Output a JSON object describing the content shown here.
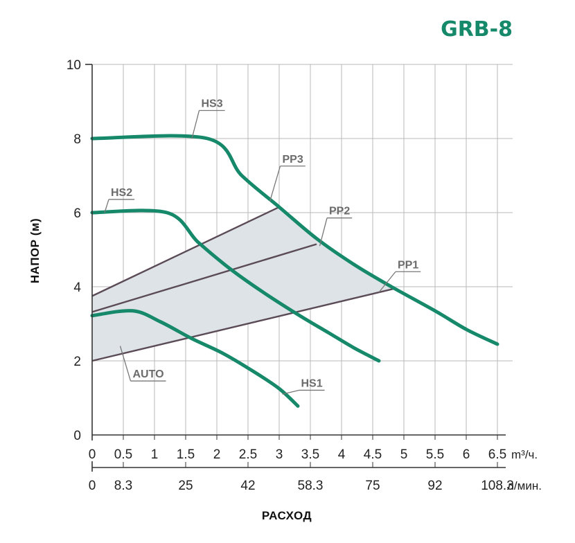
{
  "chart_data": {
    "type": "line",
    "title": "GRB-8",
    "xlabel": "РАСХОД",
    "ylabel": "НАПОР (м)",
    "xlim": [
      0,
      6.5
    ],
    "ylim": [
      0,
      10
    ],
    "grid": true,
    "x_ticks": [
      "0",
      "0.5",
      "1",
      "1.5",
      "2",
      "2.5",
      "3",
      "3.5",
      "4",
      "4.5",
      "5",
      "5.5",
      "6",
      "6.5"
    ],
    "x_unit": "m³/ч.",
    "x2_ticks": [
      {
        "label": "0",
        "x": 0
      },
      {
        "label": "8.3",
        "x": 0.5
      },
      {
        "label": "25",
        "x": 1.5
      },
      {
        "label": "42",
        "x": 2.5
      },
      {
        "label": "58.3",
        "x": 3.5
      },
      {
        "label": "75",
        "x": 4.5
      },
      {
        "label": "92",
        "x": 5.5
      },
      {
        "label": "108.3",
        "x": 6.5
      }
    ],
    "x2_unit": "л/мин.",
    "y_ticks": [
      "0",
      "2",
      "4",
      "6",
      "8",
      "10"
    ],
    "series": [
      {
        "name": "HS3",
        "points": [
          [
            0,
            8.0
          ],
          [
            1.85,
            8.0
          ],
          [
            2.4,
            7.0
          ],
          [
            3.0,
            6.15
          ],
          [
            3.6,
            5.3
          ],
          [
            4.2,
            4.6
          ],
          [
            4.8,
            4.0
          ],
          [
            5.5,
            3.35
          ],
          [
            6.0,
            2.85
          ],
          [
            6.5,
            2.45
          ]
        ]
      },
      {
        "name": "HS2",
        "points": [
          [
            0,
            6.0
          ],
          [
            1.2,
            6.0
          ],
          [
            1.7,
            5.2
          ],
          [
            2.2,
            4.5
          ],
          [
            2.7,
            3.9
          ],
          [
            3.3,
            3.25
          ],
          [
            3.8,
            2.75
          ],
          [
            4.2,
            2.35
          ],
          [
            4.6,
            2.0
          ]
        ]
      },
      {
        "name": "HS1",
        "points": [
          [
            0,
            3.22
          ],
          [
            0.65,
            3.35
          ],
          [
            1.1,
            3.05
          ],
          [
            1.6,
            2.6
          ],
          [
            2.1,
            2.2
          ],
          [
            2.6,
            1.7
          ],
          [
            3.0,
            1.25
          ],
          [
            3.3,
            0.78
          ]
        ]
      },
      {
        "name": "PP3",
        "points": [
          [
            0,
            3.75
          ],
          [
            3.0,
            6.15
          ]
        ]
      },
      {
        "name": "PP2",
        "points": [
          [
            0,
            3.32
          ],
          [
            3.6,
            5.15
          ]
        ]
      },
      {
        "name": "PP1",
        "points": [
          [
            0,
            2.0
          ],
          [
            4.85,
            3.95
          ]
        ]
      }
    ],
    "auto_region": [
      [
        0,
        3.22
      ],
      [
        0,
        2.0
      ],
      [
        4.85,
        3.95
      ],
      [
        4.2,
        4.6
      ],
      [
        3.6,
        5.3
      ],
      [
        3.0,
        6.15
      ],
      [
        0,
        3.75
      ]
    ],
    "colors": {
      "curve": "#16896a",
      "line": "#5a4b57",
      "region": "#dde3e6",
      "grid": "#b9b9b9",
      "leader": "#777777"
    },
    "callouts": [
      {
        "text": "HS3",
        "tx": 1.75,
        "ty": 8.85,
        "ax": 1.6,
        "ay": 8.0
      },
      {
        "text": "HS2",
        "tx": 0.3,
        "ty": 6.45,
        "ax": 0.2,
        "ay": 6.0
      },
      {
        "text": "PP3",
        "tx": 3.05,
        "ty": 7.35,
        "ax": 2.85,
        "ay": 6.3
      },
      {
        "text": "PP2",
        "tx": 3.8,
        "ty": 5.95,
        "ax": 3.65,
        "ay": 5.1
      },
      {
        "text": "PP1",
        "tx": 4.9,
        "ty": 4.5,
        "ax": 4.6,
        "ay": 3.85
      },
      {
        "text": "AUTO",
        "tx": 0.65,
        "ty": 1.55,
        "ax": 0.45,
        "ay": 2.4
      },
      {
        "text": "HS1",
        "tx": 3.35,
        "ty": 1.3,
        "ax": 3.05,
        "ay": 1.1
      }
    ]
  }
}
